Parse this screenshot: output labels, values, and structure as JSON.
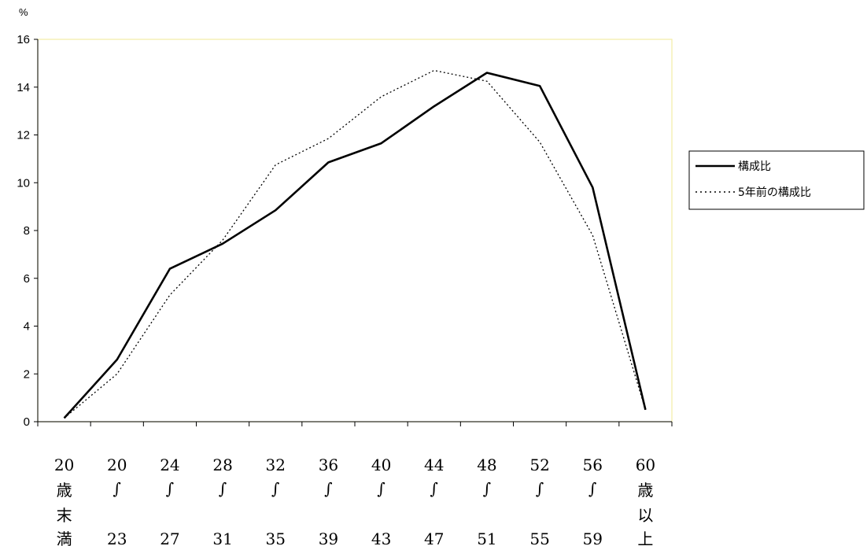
{
  "chart_data": {
    "type": "line",
    "y_unit": "%",
    "ylim": [
      0,
      16
    ],
    "yticks": [
      "0",
      "2",
      "4",
      "6",
      "8",
      "10",
      "12",
      "14",
      "16"
    ],
    "categories": [
      [
        "20",
        "歳",
        "末",
        "満"
      ],
      [
        "20",
        "∫",
        "",
        "23"
      ],
      [
        "24",
        "∫",
        "",
        "27"
      ],
      [
        "28",
        "∫",
        "",
        "31"
      ],
      [
        "32",
        "∫",
        "",
        "35"
      ],
      [
        "36",
        "∫",
        "",
        "39"
      ],
      [
        "40",
        "∫",
        "",
        "43"
      ],
      [
        "44",
        "∫",
        "",
        "47"
      ],
      [
        "48",
        "∫",
        "",
        "51"
      ],
      [
        "52",
        "∫",
        "",
        "55"
      ],
      [
        "56",
        "∫",
        "",
        "59"
      ],
      [
        "60",
        "歳",
        "以",
        "上"
      ]
    ],
    "series": [
      {
        "name": "構成比",
        "style": "solid",
        "values": [
          0.15,
          2.6,
          6.4,
          7.45,
          8.85,
          10.85,
          11.65,
          13.2,
          14.6,
          14.05,
          9.8,
          0.5
        ]
      },
      {
        "name": "5年前の構成比",
        "style": "dotted",
        "values": [
          0.15,
          2.0,
          5.3,
          7.6,
          10.75,
          11.85,
          13.6,
          14.7,
          14.25,
          11.7,
          7.8,
          0.5
        ]
      }
    ],
    "grid": false,
    "legend_position": "right",
    "plot_border_color": "#f3eda5"
  }
}
